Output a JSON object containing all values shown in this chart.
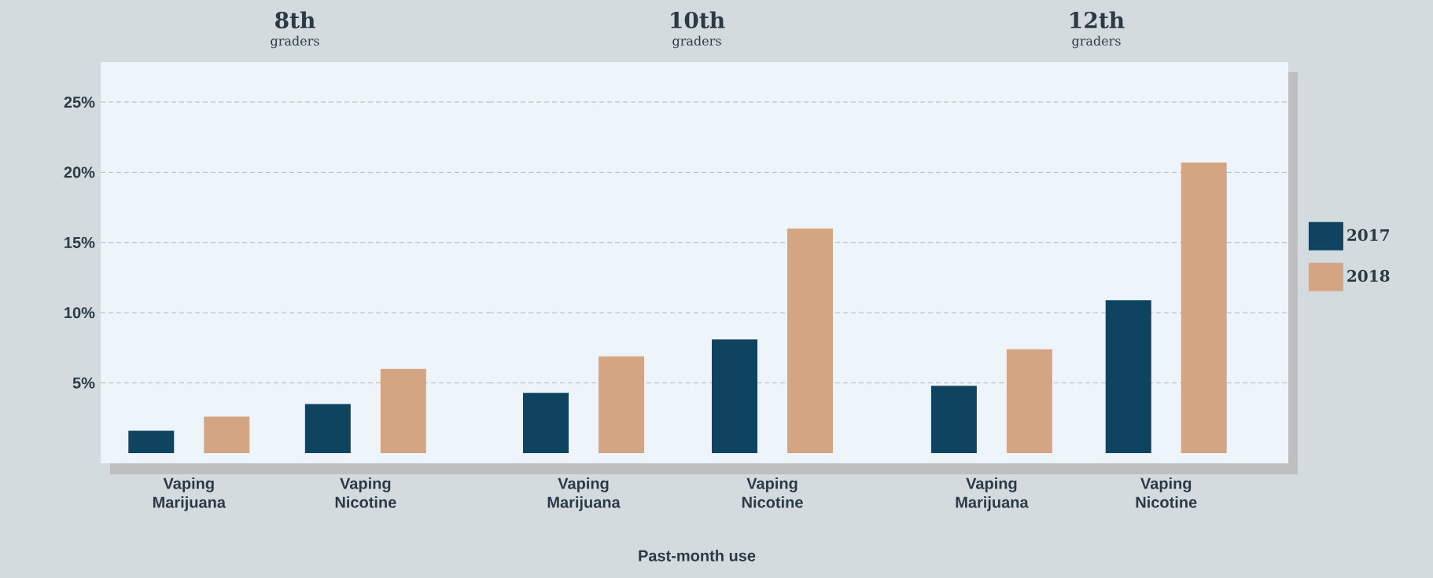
{
  "chart_data": [
    {
      "type": "bar",
      "title": "8th",
      "subtitle": "graders",
      "categories": [
        "Vaping Marijuana",
        "Vaping Nicotine"
      ],
      "series": [
        {
          "color": "#0f4461",
          "values": [
            1.6,
            3.5
          ]
        },
        {
          "color": "#d4a582",
          "values": [
            2.6,
            6.0
          ]
        }
      ],
      "ylim": [
        0,
        28
      ],
      "yticks": [
        {
          "value": 5,
          "label": "5%"
        },
        {
          "value": 10,
          "label": "10%"
        },
        {
          "value": 15,
          "label": "15%"
        },
        {
          "value": 20,
          "label": "20%"
        },
        {
          "value": 25,
          "label": "25%"
        }
      ],
      "grid": "y"
    },
    {
      "type": "bar",
      "title": "10th",
      "subtitle": "graders",
      "xlabel": "Past-month use",
      "categories": [
        "Vaping Marijuana",
        "Vaping Nicotine"
      ],
      "series": [
        {
          "color": "#0f4461",
          "values": [
            4.3,
            8.1
          ]
        },
        {
          "color": "#d4a582",
          "values": [
            6.9,
            16.0
          ]
        }
      ],
      "ylim": [
        0,
        28
      ],
      "yticks": [
        {
          "value": 5,
          "label": null
        },
        {
          "value": 10,
          "label": null
        },
        {
          "value": 15,
          "label": null
        },
        {
          "value": 20,
          "label": null
        },
        {
          "value": 25,
          "label": null
        }
      ],
      "grid": "y",
      "tick_labels": "x"
    },
    {
      "type": "bar",
      "title": "12th",
      "subtitle": "graders",
      "categories": [
        "Vaping Marijuana",
        "Vaping Nicotine"
      ],
      "series": [
        {
          "name": "2017",
          "color": "#0f4461",
          "values": [
            4.8,
            10.9
          ]
        },
        {
          "name": "2018",
          "color": "#d4a582",
          "values": [
            7.4,
            20.7
          ]
        }
      ],
      "ylim": [
        0,
        28
      ],
      "yticks": [
        {
          "value": 5,
          "label": null
        },
        {
          "value": 10,
          "label": null
        },
        {
          "value": 15,
          "label": null
        },
        {
          "value": 20,
          "label": null
        },
        {
          "value": 25,
          "label": null
        }
      ],
      "grid": "y",
      "tick_labels": "x",
      "legend": "right"
    }
  ]
}
